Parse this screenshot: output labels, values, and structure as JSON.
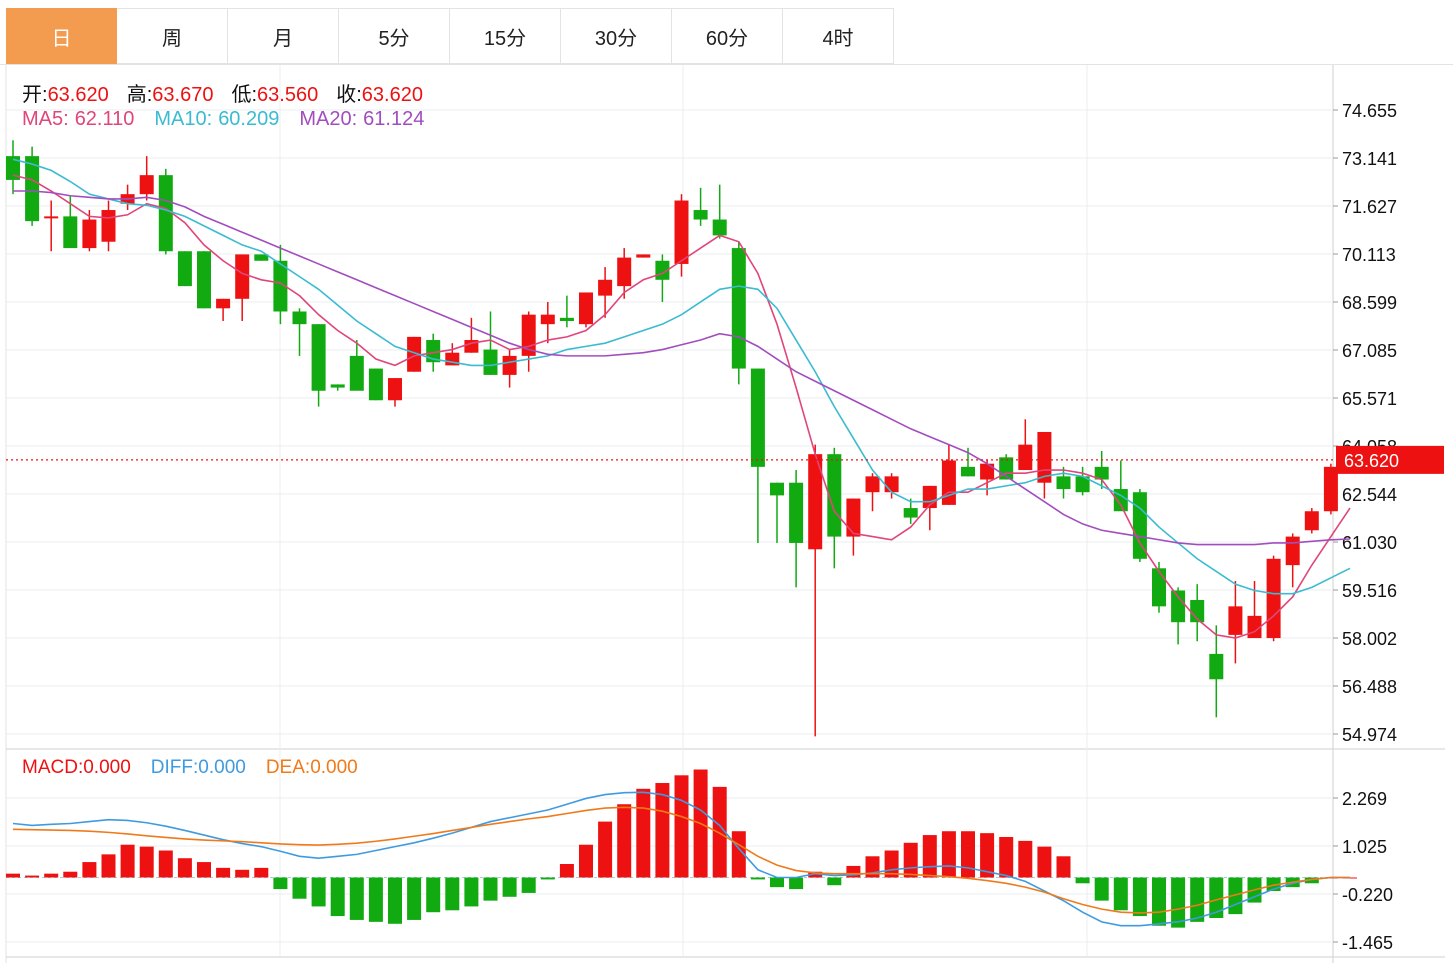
{
  "tabs": [
    {
      "label": "日",
      "active": true
    },
    {
      "label": "周",
      "active": false
    },
    {
      "label": "月",
      "active": false
    },
    {
      "label": "5分",
      "active": false
    },
    {
      "label": "15分",
      "active": false
    },
    {
      "label": "30分",
      "active": false
    },
    {
      "label": "60分",
      "active": false
    },
    {
      "label": "4时",
      "active": false
    }
  ],
  "ohlc_info": {
    "open_label": "开:",
    "open": "63.620",
    "high_label": "高:",
    "high": "63.670",
    "low_label": "低:",
    "low": "63.560",
    "close_label": "收:",
    "close": "63.620"
  },
  "ma_info": {
    "ma5_label": "MA5:",
    "ma5": "62.110",
    "ma10_label": "MA10:",
    "ma10": "60.209",
    "ma20_label": "MA20:",
    "ma20": "61.124"
  },
  "macd_info": {
    "macd_label": "MACD:",
    "macd": "0.000",
    "diff_label": "DIFF:",
    "diff": "0.000",
    "dea_label": "DEA:",
    "dea": "0.000"
  },
  "colors": {
    "up": "#ee1111",
    "down": "#11aa11",
    "ma5": "#e0457b",
    "ma10": "#3bbbd1",
    "ma20": "#a24dbe",
    "diff": "#3f9be0",
    "dea": "#f07a1a",
    "grid": "#e8eef2",
    "label_text": "#111111",
    "tab_active": "#f39c4f"
  },
  "chart_data": [
    {
      "type": "candlestick",
      "y_ticks": [
        "74.655",
        "73.141",
        "71.627",
        "70.113",
        "68.599",
        "67.085",
        "65.571",
        "64.058",
        "62.544",
        "61.030",
        "59.516",
        "58.002",
        "56.488",
        "54.974"
      ],
      "ylim": [
        54.974,
        74.655
      ],
      "current_price_label": "63.620",
      "current_price": 63.62,
      "candles": [
        [
          73.2,
          72.45,
          73.7,
          72.0
        ],
        [
          73.2,
          71.15,
          73.5,
          71.0
        ],
        [
          71.3,
          71.3,
          71.8,
          70.2
        ],
        [
          71.3,
          70.3,
          71.95,
          70.3
        ],
        [
          70.3,
          71.2,
          71.5,
          70.2
        ],
        [
          70.5,
          71.5,
          71.8,
          70.2
        ],
        [
          71.7,
          72.0,
          72.3,
          71.5
        ],
        [
          72.0,
          72.6,
          73.2,
          71.8
        ],
        [
          72.6,
          70.2,
          72.8,
          70.1
        ],
        [
          70.2,
          69.1,
          70.2,
          69.1
        ],
        [
          70.2,
          68.4,
          70.2,
          68.4
        ],
        [
          68.4,
          68.7,
          68.7,
          68.0
        ],
        [
          68.7,
          70.1,
          70.1,
          68.0
        ],
        [
          70.1,
          69.9,
          70.1,
          69.9
        ],
        [
          69.9,
          68.3,
          70.4,
          67.9
        ],
        [
          68.3,
          67.9,
          68.4,
          66.9
        ],
        [
          67.9,
          65.8,
          67.9,
          65.3
        ],
        [
          66.0,
          65.9,
          66.0,
          65.8
        ],
        [
          66.9,
          65.8,
          67.4,
          66.1
        ],
        [
          66.5,
          65.5,
          66.5,
          65.5
        ],
        [
          65.5,
          66.2,
          66.2,
          65.3
        ],
        [
          66.4,
          67.5,
          67.5,
          66.4
        ],
        [
          67.4,
          66.7,
          67.6,
          66.4
        ],
        [
          66.6,
          67.0,
          67.3,
          66.6
        ],
        [
          67.0,
          67.4,
          68.1,
          67.0
        ],
        [
          67.1,
          66.3,
          68.3,
          66.3
        ],
        [
          66.3,
          66.9,
          67.1,
          65.9
        ],
        [
          66.9,
          68.2,
          68.3,
          66.4
        ],
        [
          67.9,
          68.2,
          68.6,
          67.3
        ],
        [
          68.1,
          68.0,
          68.8,
          67.8
        ],
        [
          67.9,
          68.9,
          68.9,
          67.8
        ],
        [
          68.8,
          69.3,
          69.7,
          68.1
        ],
        [
          69.1,
          70.0,
          70.3,
          68.7
        ],
        [
          70.0,
          70.1,
          70.1,
          70.0
        ],
        [
          69.9,
          69.3,
          70.1,
          68.6
        ],
        [
          69.8,
          71.8,
          72.0,
          69.4
        ],
        [
          71.5,
          71.2,
          72.2,
          71.0
        ],
        [
          71.2,
          70.7,
          72.3,
          70.6
        ],
        [
          70.3,
          66.5,
          70.5,
          66.0
        ],
        [
          66.5,
          63.4,
          66.5,
          61.0
        ],
        [
          62.9,
          62.5,
          62.9,
          61.0
        ],
        [
          62.9,
          61.0,
          63.3,
          59.6
        ],
        [
          60.8,
          63.8,
          64.1,
          54.9
        ],
        [
          63.8,
          61.2,
          64.0,
          60.2
        ],
        [
          61.2,
          62.4,
          62.4,
          60.6
        ],
        [
          62.6,
          63.1,
          63.2,
          62.0
        ],
        [
          62.6,
          63.1,
          63.2,
          62.4
        ],
        [
          62.1,
          61.8,
          62.4,
          61.6
        ],
        [
          62.1,
          62.8,
          62.8,
          61.4
        ],
        [
          62.2,
          63.6,
          64.1,
          62.2
        ],
        [
          63.4,
          63.1,
          64.0,
          63.1
        ],
        [
          63.0,
          63.5,
          63.6,
          62.5
        ],
        [
          63.7,
          63.0,
          63.8,
          63.0
        ],
        [
          63.3,
          64.1,
          64.9,
          63.7
        ],
        [
          62.9,
          64.5,
          64.5,
          62.4
        ],
        [
          63.1,
          62.7,
          63.4,
          62.4
        ],
        [
          63.1,
          62.6,
          63.4,
          62.5
        ],
        [
          63.4,
          63.0,
          63.9,
          62.7
        ],
        [
          62.7,
          62.0,
          63.6,
          62.2
        ],
        [
          62.6,
          60.5,
          62.7,
          60.4
        ],
        [
          60.2,
          59.0,
          60.4,
          58.8
        ],
        [
          59.5,
          58.5,
          59.6,
          57.8
        ],
        [
          59.2,
          58.5,
          59.7,
          57.9
        ],
        [
          57.5,
          56.7,
          58.4,
          55.5
        ],
        [
          58.1,
          59.0,
          59.8,
          57.2
        ],
        [
          58.0,
          58.7,
          59.8,
          58.1
        ],
        [
          58.0,
          60.5,
          60.6,
          57.9
        ],
        [
          60.3,
          61.2,
          61.3,
          59.6
        ],
        [
          61.4,
          62.0,
          62.1,
          61.3
        ],
        [
          62.0,
          63.4,
          63.5,
          61.9
        ],
        [
          63.62,
          63.62,
          63.67,
          63.56
        ]
      ],
      "ma_series": [
        {
          "name": "MA5",
          "values": [
            72.6,
            72.45,
            72.1,
            71.7,
            71.3,
            71.25,
            71.35,
            71.7,
            71.55,
            71.1,
            70.4,
            69.9,
            69.5,
            69.3,
            69.2,
            68.8,
            68.2,
            67.7,
            67.3,
            66.8,
            66.6,
            66.9,
            67.0,
            67.1,
            67.3,
            67.4,
            67.1,
            67.2,
            67.4,
            67.5,
            67.7,
            68.2,
            68.9,
            69.3,
            69.5,
            69.9,
            70.3,
            70.7,
            70.5,
            69.5,
            67.9,
            65.9,
            63.8,
            62.0,
            61.3,
            61.2,
            61.1,
            61.5,
            62.2,
            62.6,
            62.6,
            62.9,
            63.2,
            63.2,
            63.3,
            63.3,
            63.2,
            63.0,
            62.2,
            61.0,
            60.1,
            59.3,
            58.6,
            58.1,
            58.0,
            58.2,
            58.7,
            59.3,
            60.3,
            61.2,
            62.1
          ]
        },
        {
          "name": "MA10",
          "values": [
            73.1,
            72.95,
            72.75,
            72.4,
            72.0,
            71.85,
            71.7,
            71.65,
            71.5,
            71.3,
            71.0,
            70.7,
            70.4,
            70.2,
            69.8,
            69.4,
            69.0,
            68.5,
            68.0,
            67.6,
            67.2,
            67.0,
            66.8,
            66.7,
            66.6,
            66.6,
            66.7,
            66.8,
            66.9,
            67.1,
            67.2,
            67.3,
            67.5,
            67.7,
            67.9,
            68.2,
            68.6,
            69.0,
            69.1,
            69.0,
            68.4,
            67.4,
            66.4,
            65.3,
            64.3,
            63.3,
            62.6,
            62.3,
            62.3,
            62.5,
            62.7,
            62.7,
            62.8,
            62.9,
            63.1,
            63.2,
            63.1,
            62.8,
            62.5,
            62.1,
            61.5,
            61.0,
            60.5,
            60.1,
            59.7,
            59.5,
            59.4,
            59.4,
            59.6,
            59.9,
            60.2
          ]
        },
        {
          "name": "MA20",
          "values": [
            72.1,
            72.1,
            72.05,
            71.95,
            71.9,
            71.85,
            71.85,
            71.9,
            71.8,
            71.6,
            71.3,
            71.05,
            70.8,
            70.55,
            70.3,
            70.05,
            69.8,
            69.55,
            69.3,
            69.05,
            68.8,
            68.55,
            68.3,
            68.05,
            67.8,
            67.55,
            67.3,
            67.1,
            66.95,
            66.9,
            66.9,
            66.9,
            66.95,
            67.0,
            67.1,
            67.25,
            67.4,
            67.6,
            67.5,
            67.2,
            66.8,
            66.4,
            66.1,
            65.8,
            65.5,
            65.2,
            64.9,
            64.6,
            64.35,
            64.1,
            63.85,
            63.5,
            63.1,
            62.7,
            62.3,
            61.9,
            61.6,
            61.4,
            61.3,
            61.2,
            61.1,
            61.0,
            60.95,
            60.95,
            60.95,
            60.95,
            61.0,
            61.0,
            61.05,
            61.1,
            61.124
          ]
        }
      ]
    },
    {
      "type": "macd",
      "y_ticks": [
        "2.269",
        "1.025",
        "-0.220",
        "-1.465"
      ],
      "ylim": [
        -1.465,
        2.269
      ],
      "histogram": [
        0.1,
        0.05,
        0.1,
        0.15,
        0.4,
        0.6,
        0.85,
        0.8,
        0.7,
        0.5,
        0.4,
        0.25,
        0.2,
        0.25,
        -0.3,
        -0.55,
        -0.75,
        -1.0,
        -1.1,
        -1.15,
        -1.2,
        -1.1,
        -0.9,
        -0.85,
        -0.75,
        -0.6,
        -0.5,
        -0.4,
        -0.05,
        0.35,
        0.85,
        1.45,
        1.9,
        2.3,
        2.45,
        2.65,
        2.8,
        2.35,
        1.2,
        -0.05,
        -0.25,
        -0.3,
        0.15,
        -0.2,
        0.3,
        0.55,
        0.7,
        0.9,
        1.1,
        1.2,
        1.2,
        1.15,
        1.05,
        0.95,
        0.8,
        0.55,
        -0.15,
        -0.6,
        -0.85,
        -1.0,
        -1.25,
        -1.3,
        -1.15,
        -1.05,
        -0.95,
        -0.65,
        -0.35,
        -0.25,
        -0.15,
        0.0,
        0.0
      ],
      "diff": [
        1.4,
        1.35,
        1.38,
        1.4,
        1.45,
        1.5,
        1.48,
        1.42,
        1.33,
        1.22,
        1.1,
        0.98,
        0.88,
        0.8,
        0.68,
        0.55,
        0.5,
        0.55,
        0.6,
        0.7,
        0.8,
        0.9,
        1.02,
        1.15,
        1.3,
        1.45,
        1.55,
        1.65,
        1.75,
        1.9,
        2.05,
        2.15,
        2.2,
        2.21,
        2.15,
        2.0,
        1.75,
        1.35,
        0.75,
        0.2,
        0.0,
        0.0,
        0.1,
        0.05,
        0.07,
        0.12,
        0.2,
        0.25,
        0.28,
        0.3,
        0.25,
        0.15,
        0.05,
        -0.1,
        -0.35,
        -0.6,
        -0.9,
        -1.15,
        -1.25,
        -1.25,
        -1.2,
        -1.15,
        -1.05,
        -0.9,
        -0.7,
        -0.5,
        -0.3,
        -0.15,
        -0.05,
        0.0,
        0.0
      ],
      "dea": [
        1.25,
        1.24,
        1.23,
        1.22,
        1.2,
        1.17,
        1.13,
        1.08,
        1.04,
        1.0,
        0.97,
        0.95,
        0.93,
        0.9,
        0.87,
        0.85,
        0.84,
        0.86,
        0.89,
        0.94,
        1.0,
        1.07,
        1.14,
        1.22,
        1.3,
        1.38,
        1.45,
        1.52,
        1.58,
        1.66,
        1.74,
        1.8,
        1.82,
        1.8,
        1.72,
        1.58,
        1.4,
        1.15,
        0.85,
        0.55,
        0.32,
        0.18,
        0.12,
        0.1,
        0.1,
        0.1,
        0.1,
        0.08,
        0.05,
        0.02,
        -0.02,
        -0.08,
        -0.15,
        -0.25,
        -0.38,
        -0.55,
        -0.7,
        -0.82,
        -0.9,
        -0.92,
        -0.9,
        -0.82,
        -0.72,
        -0.58,
        -0.45,
        -0.32,
        -0.2,
        -0.12,
        -0.05,
        0.0,
        0.0
      ]
    }
  ]
}
